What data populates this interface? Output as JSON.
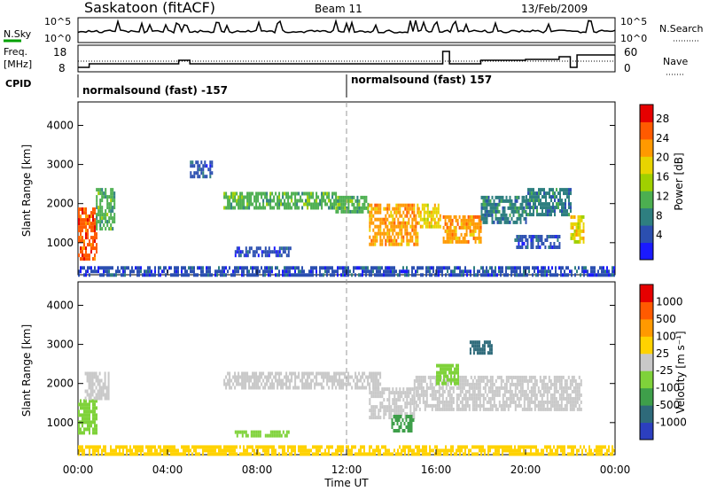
{
  "header": {
    "station": "Saskatoon (fitACF)",
    "beam": "Beam 11",
    "date": "13/Feb/2009"
  },
  "top_panels": {
    "nsky_label": "N.Sky",
    "nsky_ticks": [
      "10^5",
      "10^0"
    ],
    "nsearch_label": "N.Search",
    "nsearch_ticks": [
      "10^5",
      "10^0"
    ],
    "freq_label": "Freq.",
    "freq_unit": "[MHz]",
    "freq_ticks": [
      "18",
      "8"
    ],
    "nave_label": "Nave",
    "nave_ticks": [
      "60",
      "0"
    ],
    "cpid_label": "CPID",
    "cpid_segments": [
      {
        "text": "normalsound (fast) -157",
        "start_hour": 0
      },
      {
        "text": "normalsound (fast) 157",
        "start_hour": 12
      }
    ]
  },
  "chart_data": [
    {
      "type": "heatmap",
      "name": "power",
      "ylabel": "Slant Range [km]",
      "xlabel": "Time UT",
      "x_ticks": [
        "00:00",
        "04:00",
        "08:00",
        "12:00",
        "16:00",
        "20:00",
        "00:00"
      ],
      "xlim_hours": [
        0,
        24
      ],
      "y_ticks": [
        1000,
        2000,
        3000,
        4000
      ],
      "ylim": [
        180,
        4600
      ],
      "colorbar_label": "Power [dB]",
      "colorbar_ticks": [
        4,
        8,
        12,
        16,
        20,
        24,
        28
      ],
      "colorbar_colors": [
        "#1a1aff",
        "#2b4fb0",
        "#2e7f80",
        "#4caf50",
        "#a0d000",
        "#e8d400",
        "#ff9900",
        "#ff5a00",
        "#e60000"
      ],
      "regions": [
        {
          "t0": 0.0,
          "t1": 0.8,
          "r0": 600,
          "r1": 1900,
          "level": 26
        },
        {
          "t0": 0.8,
          "t1": 1.6,
          "r0": 1400,
          "r1": 2400,
          "level": 12
        },
        {
          "t0": 6.5,
          "t1": 11.5,
          "r0": 1850,
          "r1": 2300,
          "level": 11
        },
        {
          "t0": 11.5,
          "t1": 13.0,
          "r0": 1800,
          "r1": 2200,
          "level": 14
        },
        {
          "t0": 13.0,
          "t1": 15.2,
          "r0": 1000,
          "r1": 2000,
          "level": 22
        },
        {
          "t0": 15.2,
          "t1": 16.2,
          "r0": 1400,
          "r1": 2000,
          "level": 20
        },
        {
          "t0": 16.3,
          "t1": 18.0,
          "r0": 1000,
          "r1": 1700,
          "level": 24
        },
        {
          "t0": 18.0,
          "t1": 20.0,
          "r0": 1500,
          "r1": 2200,
          "level": 10
        },
        {
          "t0": 20.0,
          "t1": 22.0,
          "r0": 1700,
          "r1": 2400,
          "level": 8
        },
        {
          "t0": 19.5,
          "t1": 21.5,
          "r0": 900,
          "r1": 1200,
          "level": 6
        },
        {
          "t0": 7.0,
          "t1": 9.5,
          "r0": 700,
          "r1": 900,
          "level": 5
        },
        {
          "t0": 5.0,
          "t1": 6.0,
          "r0": 2700,
          "r1": 3100,
          "level": 5
        },
        {
          "t0": 22.0,
          "t1": 22.6,
          "r0": 1000,
          "r1": 1700,
          "level": 20
        },
        {
          "t0": 0.0,
          "t1": 24.0,
          "r0": 180,
          "r1": 400,
          "level": 7
        }
      ]
    },
    {
      "type": "heatmap",
      "name": "velocity",
      "ylabel": "Slant Range [km]",
      "xlabel": "Time UT",
      "x_ticks": [
        "00:00",
        "04:00",
        "08:00",
        "12:00",
        "16:00",
        "20:00",
        "00:00"
      ],
      "xlim_hours": [
        0,
        24
      ],
      "y_ticks": [
        1000,
        2000,
        3000,
        4000
      ],
      "ylim": [
        180,
        4600
      ],
      "colorbar_label": "Velocity [m s⁻¹]",
      "colorbar_ticks": [
        "1000",
        "500",
        "100",
        "25",
        "-25",
        "-100",
        "-500",
        "-1000"
      ],
      "colorbar_colors": [
        "#2c3fbf",
        "#2e6a7a",
        "#3e9f4a",
        "#7fd23a",
        "#c8c8c8",
        "#ffd200",
        "#ff9900",
        "#ff5a00",
        "#e60000"
      ],
      "regions": [
        {
          "t0": 0.0,
          "t1": 0.8,
          "r0": 700,
          "r1": 1600,
          "color": "#7fd23a"
        },
        {
          "t0": 0.3,
          "t1": 1.4,
          "r0": 1600,
          "r1": 2300,
          "color": "#c8c8c8"
        },
        {
          "t0": 6.5,
          "t1": 13.5,
          "r0": 1850,
          "r1": 2300,
          "color": "#c8c8c8"
        },
        {
          "t0": 13.0,
          "t1": 15.0,
          "r0": 1100,
          "r1": 1900,
          "color": "#c8c8c8"
        },
        {
          "t0": 14.0,
          "t1": 15.0,
          "r0": 800,
          "r1": 1200,
          "color": "#3e9f4a"
        },
        {
          "t0": 15.0,
          "t1": 22.5,
          "r0": 1300,
          "r1": 2200,
          "color": "#c8c8c8"
        },
        {
          "t0": 7.0,
          "t1": 9.5,
          "r0": 700,
          "r1": 800,
          "color": "#7fd23a"
        },
        {
          "t0": 17.5,
          "t1": 18.5,
          "r0": 2800,
          "r1": 3100,
          "color": "#2e6a7a"
        },
        {
          "t0": 16.0,
          "t1": 17.0,
          "r0": 2000,
          "r1": 2500,
          "color": "#7fd23a"
        },
        {
          "t0": 0.0,
          "t1": 24.0,
          "r0": 180,
          "r1": 420,
          "color": "#ffd200"
        }
      ]
    }
  ]
}
